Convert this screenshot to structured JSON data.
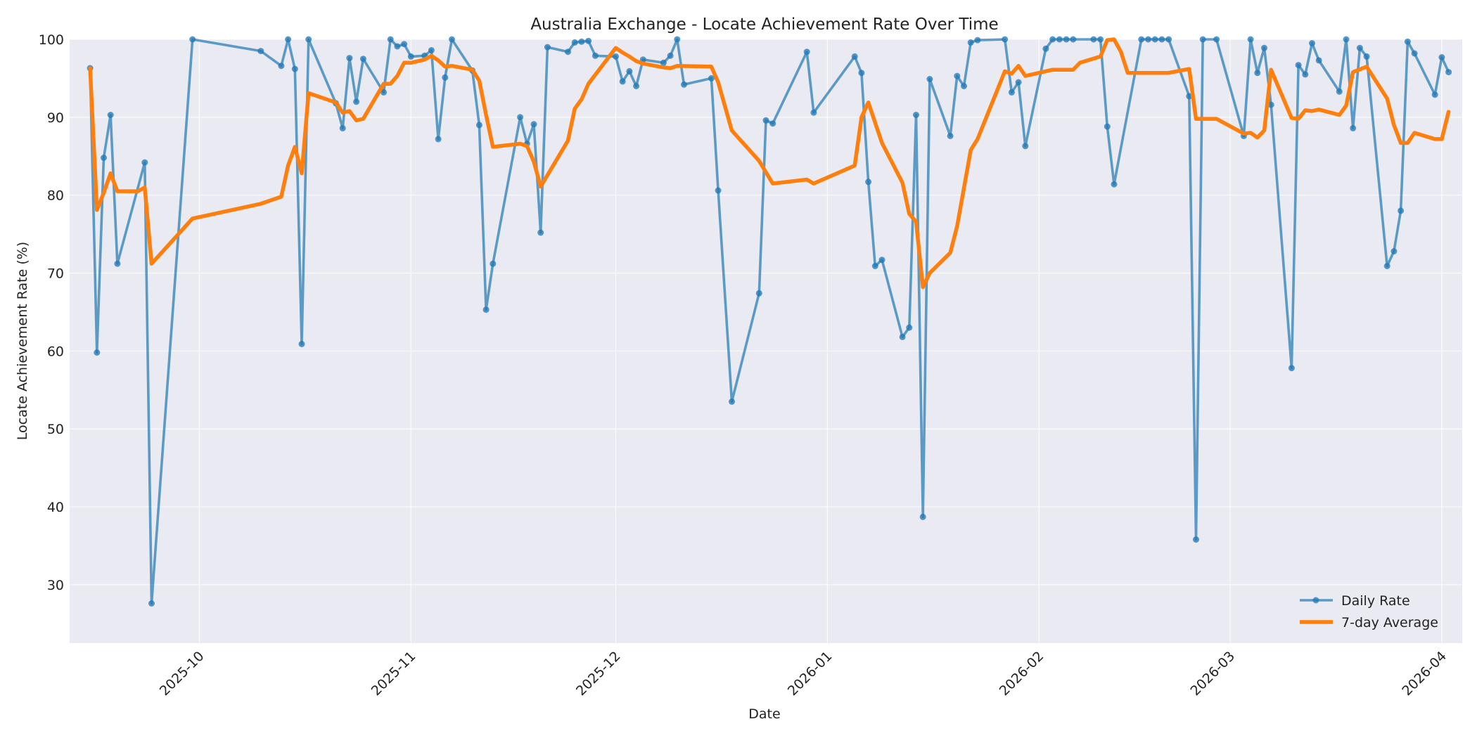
{
  "chart_data": {
    "type": "line",
    "title": "Australia Exchange - Locate Achievement Rate Over Time",
    "xlabel": "Date",
    "ylabel": "Locate Achievement Rate (%)",
    "ylim": [
      22.5,
      100
    ],
    "y_ticks": [
      30,
      40,
      50,
      60,
      70,
      80,
      90,
      100
    ],
    "xlim": [
      "2025-09-12",
      "2026-04-04"
    ],
    "x_ticks": [
      "2025-10-01",
      "2025-11-01",
      "2025-12-01",
      "2026-01-01",
      "2026-02-01",
      "2026-03-01",
      "2026-04-01"
    ],
    "x_tick_labels": [
      "2025-10",
      "2025-11",
      "2025-12",
      "2026-01",
      "2026-02",
      "2026-03",
      "2026-04"
    ],
    "grid": true,
    "legend_position": "bottom-right",
    "colors": {
      "daily": "#1f77b4",
      "average": "#ff7f0e",
      "plot_background": "#eaeaf2",
      "grid": "#ffffff"
    },
    "series": [
      {
        "name": "Daily Rate",
        "style": "line-with-markers",
        "points": [
          [
            "2025-09-15",
            96.3
          ],
          [
            "2025-09-16",
            59.8
          ],
          [
            "2025-09-17",
            84.8
          ],
          [
            "2025-09-18",
            90.3
          ],
          [
            "2025-09-19",
            71.2
          ],
          [
            "2025-09-23",
            84.2
          ],
          [
            "2025-09-24",
            27.6
          ],
          [
            "2025-09-30",
            100.0
          ],
          [
            "2025-10-10",
            98.5
          ],
          [
            "2025-10-13",
            96.6
          ],
          [
            "2025-10-14",
            100.0
          ],
          [
            "2025-10-15",
            96.2
          ],
          [
            "2025-10-16",
            60.9
          ],
          [
            "2025-10-17",
            100.0
          ],
          [
            "2025-10-21",
            91.8
          ],
          [
            "2025-10-22",
            88.6
          ],
          [
            "2025-10-23",
            97.6
          ],
          [
            "2025-10-24",
            92.0
          ],
          [
            "2025-10-25",
            97.5
          ],
          [
            "2025-10-28",
            93.2
          ],
          [
            "2025-10-29",
            100.0
          ],
          [
            "2025-10-30",
            99.1
          ],
          [
            "2025-10-31",
            99.4
          ],
          [
            "2025-11-01",
            97.8
          ],
          [
            "2025-11-03",
            97.9
          ],
          [
            "2025-11-04",
            98.6
          ],
          [
            "2025-11-05",
            87.2
          ],
          [
            "2025-11-06",
            95.1
          ],
          [
            "2025-11-07",
            100.0
          ],
          [
            "2025-11-10",
            96.0
          ],
          [
            "2025-11-11",
            89.0
          ],
          [
            "2025-11-12",
            65.3
          ],
          [
            "2025-11-13",
            71.2
          ],
          [
            "2025-11-17",
            90.0
          ],
          [
            "2025-11-18",
            86.6
          ],
          [
            "2025-11-19",
            89.1
          ],
          [
            "2025-11-20",
            75.2
          ],
          [
            "2025-11-21",
            99.0
          ],
          [
            "2025-11-24",
            98.4
          ],
          [
            "2025-11-25",
            99.6
          ],
          [
            "2025-11-26",
            99.7
          ],
          [
            "2025-11-27",
            99.8
          ],
          [
            "2025-11-28",
            97.9
          ],
          [
            "2025-12-01",
            97.8
          ],
          [
            "2025-12-02",
            94.6
          ],
          [
            "2025-12-03",
            95.9
          ],
          [
            "2025-12-04",
            94.0
          ],
          [
            "2025-12-05",
            97.4
          ],
          [
            "2025-12-08",
            97.0
          ],
          [
            "2025-12-09",
            97.9
          ],
          [
            "2025-12-10",
            100.0
          ],
          [
            "2025-12-11",
            94.2
          ],
          [
            "2025-12-15",
            95.0
          ],
          [
            "2025-12-16",
            80.6
          ],
          [
            "2025-12-18",
            53.5
          ],
          [
            "2025-12-22",
            67.4
          ],
          [
            "2025-12-23",
            89.6
          ],
          [
            "2025-12-24",
            89.2
          ],
          [
            "2025-12-29",
            98.4
          ],
          [
            "2025-12-30",
            90.6
          ],
          [
            "2026-01-05",
            97.8
          ],
          [
            "2026-01-06",
            95.7
          ],
          [
            "2026-01-07",
            81.7
          ],
          [
            "2026-01-08",
            70.9
          ],
          [
            "2026-01-09",
            71.7
          ],
          [
            "2026-01-12",
            61.8
          ],
          [
            "2026-01-13",
            63.0
          ],
          [
            "2026-01-14",
            90.3
          ],
          [
            "2026-01-15",
            38.7
          ],
          [
            "2026-01-16",
            94.9
          ],
          [
            "2026-01-19",
            87.6
          ],
          [
            "2026-01-20",
            95.3
          ],
          [
            "2026-01-21",
            94.0
          ],
          [
            "2026-01-22",
            99.6
          ],
          [
            "2026-01-23",
            99.9
          ],
          [
            "2026-01-27",
            100.0
          ],
          [
            "2026-01-28",
            93.2
          ],
          [
            "2026-01-29",
            94.5
          ],
          [
            "2026-01-30",
            86.3
          ],
          [
            "2026-02-02",
            98.8
          ],
          [
            "2026-02-03",
            100.0
          ],
          [
            "2026-02-04",
            100.0
          ],
          [
            "2026-02-05",
            100.0
          ],
          [
            "2026-02-06",
            100.0
          ],
          [
            "2026-02-09",
            100.0
          ],
          [
            "2026-02-10",
            100.0
          ],
          [
            "2026-02-11",
            88.8
          ],
          [
            "2026-02-12",
            81.4
          ],
          [
            "2026-02-16",
            100.0
          ],
          [
            "2026-02-17",
            100.0
          ],
          [
            "2026-02-18",
            100.0
          ],
          [
            "2026-02-19",
            100.0
          ],
          [
            "2026-02-20",
            100.0
          ],
          [
            "2026-02-23",
            92.7
          ],
          [
            "2026-02-24",
            35.8
          ],
          [
            "2026-02-25",
            100.0
          ],
          [
            "2026-02-27",
            100.0
          ],
          [
            "2026-03-03",
            87.6
          ],
          [
            "2026-03-04",
            100.0
          ],
          [
            "2026-03-05",
            95.7
          ],
          [
            "2026-03-06",
            98.9
          ],
          [
            "2026-03-07",
            91.6
          ],
          [
            "2026-03-10",
            57.8
          ],
          [
            "2026-03-11",
            96.7
          ],
          [
            "2026-03-12",
            95.5
          ],
          [
            "2026-03-13",
            99.5
          ],
          [
            "2026-03-14",
            97.3
          ],
          [
            "2026-03-17",
            93.3
          ],
          [
            "2026-03-18",
            100.0
          ],
          [
            "2026-03-19",
            88.6
          ],
          [
            "2026-03-20",
            98.9
          ],
          [
            "2026-03-21",
            97.8
          ],
          [
            "2026-03-24",
            70.9
          ],
          [
            "2026-03-25",
            72.8
          ],
          [
            "2026-03-26",
            78.0
          ],
          [
            "2026-03-27",
            99.7
          ],
          [
            "2026-03-28",
            98.2
          ],
          [
            "2026-03-31",
            92.9
          ],
          [
            "2026-04-01",
            97.7
          ],
          [
            "2026-04-02",
            95.8
          ]
        ]
      },
      {
        "name": "7-day Average",
        "style": "thick-line",
        "points": [
          [
            "2025-09-15",
            96.3
          ],
          [
            "2025-09-16",
            78.1
          ],
          [
            "2025-09-17",
            80.3
          ],
          [
            "2025-09-18",
            82.8
          ],
          [
            "2025-09-19",
            80.5
          ],
          [
            "2025-09-22",
            80.5
          ],
          [
            "2025-09-23",
            81.0
          ],
          [
            "2025-09-24",
            71.2
          ],
          [
            "2025-09-30",
            77.0
          ],
          [
            "2025-10-10",
            78.9
          ],
          [
            "2025-10-13",
            79.8
          ],
          [
            "2025-10-14",
            83.8
          ],
          [
            "2025-10-15",
            86.2
          ],
          [
            "2025-10-16",
            82.8
          ],
          [
            "2025-10-17",
            93.1
          ],
          [
            "2025-10-21",
            91.9
          ],
          [
            "2025-10-22",
            90.6
          ],
          [
            "2025-10-23",
            90.8
          ],
          [
            "2025-10-24",
            89.6
          ],
          [
            "2025-10-25",
            89.8
          ],
          [
            "2025-10-28",
            94.3
          ],
          [
            "2025-10-29",
            94.3
          ],
          [
            "2025-10-30",
            95.3
          ],
          [
            "2025-10-31",
            97.0
          ],
          [
            "2025-11-01",
            97.0
          ],
          [
            "2025-11-03",
            97.4
          ],
          [
            "2025-11-04",
            97.9
          ],
          [
            "2025-11-05",
            97.3
          ],
          [
            "2025-11-06",
            96.5
          ],
          [
            "2025-11-07",
            96.6
          ],
          [
            "2025-11-10",
            96.1
          ],
          [
            "2025-11-11",
            94.7
          ],
          [
            "2025-11-12",
            90.3
          ],
          [
            "2025-11-13",
            86.2
          ],
          [
            "2025-11-17",
            86.6
          ],
          [
            "2025-11-18",
            86.3
          ],
          [
            "2025-11-19",
            84.3
          ],
          [
            "2025-11-20",
            81.1
          ],
          [
            "2025-11-24",
            87.0
          ],
          [
            "2025-11-25",
            91.1
          ],
          [
            "2025-11-26",
            92.3
          ],
          [
            "2025-11-27",
            94.3
          ],
          [
            "2025-12-01",
            98.9
          ],
          [
            "2025-12-02",
            98.3
          ],
          [
            "2025-12-03",
            97.8
          ],
          [
            "2025-12-04",
            97.2
          ],
          [
            "2025-12-05",
            96.9
          ],
          [
            "2025-12-08",
            96.4
          ],
          [
            "2025-12-09",
            96.3
          ],
          [
            "2025-12-10",
            96.6
          ],
          [
            "2025-12-15",
            96.5
          ],
          [
            "2025-12-16",
            94.5
          ],
          [
            "2025-12-18",
            88.3
          ],
          [
            "2025-12-22",
            84.4
          ],
          [
            "2025-12-24",
            81.5
          ],
          [
            "2025-12-29",
            82.0
          ],
          [
            "2025-12-30",
            81.5
          ],
          [
            "2026-01-05",
            83.8
          ],
          [
            "2026-01-06",
            90.0
          ],
          [
            "2026-01-07",
            91.9
          ],
          [
            "2026-01-09",
            86.7
          ],
          [
            "2026-01-12",
            81.6
          ],
          [
            "2026-01-13",
            77.6
          ],
          [
            "2026-01-14",
            76.6
          ],
          [
            "2026-01-15",
            68.2
          ],
          [
            "2026-01-16",
            70.0
          ],
          [
            "2026-01-19",
            72.6
          ],
          [
            "2026-01-20",
            76.0
          ],
          [
            "2026-01-22",
            85.8
          ],
          [
            "2026-01-23",
            87.2
          ],
          [
            "2026-01-27",
            95.9
          ],
          [
            "2026-01-28",
            95.6
          ],
          [
            "2026-01-29",
            96.6
          ],
          [
            "2026-01-30",
            95.3
          ],
          [
            "2026-02-03",
            96.1
          ],
          [
            "2026-02-06",
            96.1
          ],
          [
            "2026-02-07",
            97.0
          ],
          [
            "2026-02-10",
            97.8
          ],
          [
            "2026-02-11",
            99.9
          ],
          [
            "2026-02-12",
            100.0
          ],
          [
            "2026-02-13",
            98.4
          ],
          [
            "2026-02-14",
            95.7
          ],
          [
            "2026-02-20",
            95.7
          ],
          [
            "2026-02-23",
            96.2
          ],
          [
            "2026-02-24",
            89.8
          ],
          [
            "2026-02-27",
            89.8
          ],
          [
            "2026-03-03",
            87.9
          ],
          [
            "2026-03-04",
            88.0
          ],
          [
            "2026-03-05",
            87.4
          ],
          [
            "2026-03-06",
            88.3
          ],
          [
            "2026-03-07",
            96.1
          ],
          [
            "2026-03-10",
            89.9
          ],
          [
            "2026-03-11",
            89.8
          ],
          [
            "2026-03-12",
            90.9
          ],
          [
            "2026-03-13",
            90.8
          ],
          [
            "2026-03-14",
            91.0
          ],
          [
            "2026-03-17",
            90.3
          ],
          [
            "2026-03-18",
            91.5
          ],
          [
            "2026-03-19",
            95.8
          ],
          [
            "2026-03-21",
            96.5
          ],
          [
            "2026-03-24",
            92.4
          ],
          [
            "2026-03-25",
            89.0
          ],
          [
            "2026-03-26",
            86.7
          ],
          [
            "2026-03-27",
            86.7
          ],
          [
            "2026-03-28",
            88.0
          ],
          [
            "2026-03-31",
            87.2
          ],
          [
            "2026-04-01",
            87.2
          ],
          [
            "2026-04-02",
            90.7
          ]
        ]
      }
    ]
  }
}
